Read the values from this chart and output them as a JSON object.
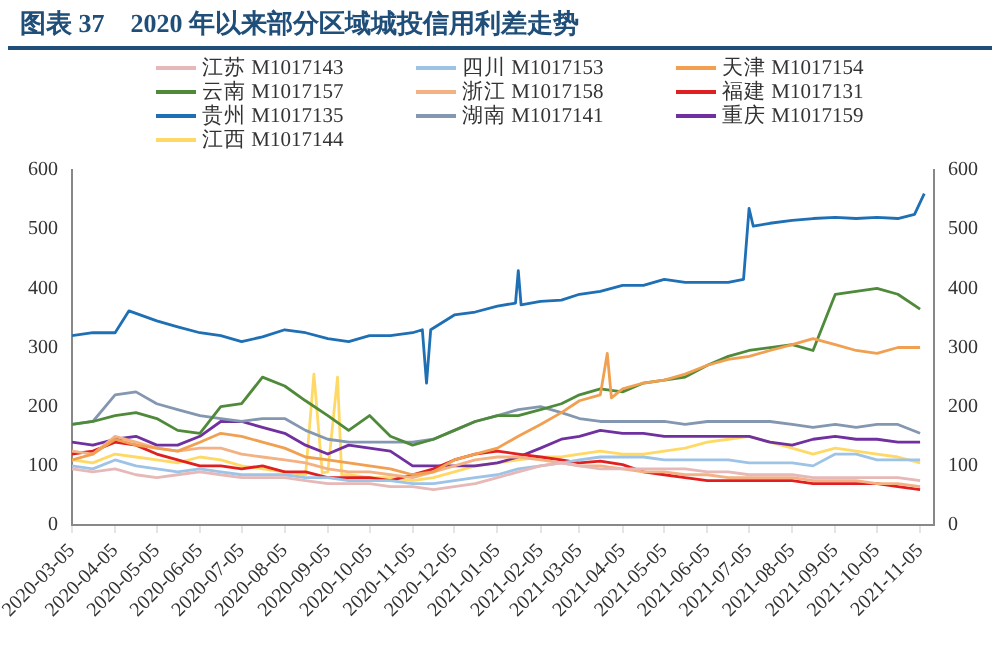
{
  "chart_data": {
    "type": "line",
    "title": "图表 37　2020 年以来部分区域城投信用利差走势",
    "x": [
      "2020-03-05",
      "2020-03-20",
      "2020-04-05",
      "2020-04-20",
      "2020-05-05",
      "2020-05-20",
      "2020-06-05",
      "2020-06-20",
      "2020-07-05",
      "2020-07-20",
      "2020-08-05",
      "2020-08-20",
      "2020-09-05",
      "2020-09-20",
      "2020-10-05",
      "2020-10-20",
      "2020-11-05",
      "2020-11-20",
      "2020-12-05",
      "2020-12-20",
      "2021-01-05",
      "2021-01-20",
      "2021-02-05",
      "2021-02-20",
      "2021-03-05",
      "2021-03-20",
      "2021-04-05",
      "2021-04-20",
      "2021-05-05",
      "2021-05-20",
      "2021-06-05",
      "2021-06-20",
      "2021-07-05",
      "2021-07-20",
      "2021-08-05",
      "2021-08-20",
      "2021-09-05",
      "2021-09-20",
      "2021-10-05",
      "2021-10-20",
      "2021-11-05"
    ],
    "series": [
      {
        "name": "江苏 M1017143",
        "color": "#e6b8b7",
        "values": [
          95,
          90,
          95,
          85,
          80,
          85,
          90,
          85,
          80,
          80,
          80,
          75,
          70,
          70,
          70,
          65,
          65,
          60,
          65,
          70,
          80,
          90,
          100,
          105,
          100,
          95,
          95,
          95,
          95,
          95,
          90,
          90,
          85,
          85,
          85,
          80,
          80,
          80,
          80,
          80,
          75
        ]
      },
      {
        "name": "四川 M1017153",
        "color": "#9dc3e6",
        "values": [
          100,
          95,
          110,
          100,
          95,
          90,
          95,
          90,
          85,
          85,
          85,
          80,
          80,
          75,
          75,
          75,
          70,
          70,
          75,
          80,
          85,
          95,
          100,
          105,
          110,
          115,
          115,
          115,
          110,
          110,
          110,
          110,
          105,
          105,
          105,
          100,
          120,
          120,
          110,
          110,
          110
        ]
      },
      {
        "name": "天津 M1017154",
        "color": "#f0a050",
        "x": [
          "2020-03-05",
          "2020-03-20",
          "2020-04-05",
          "2020-04-20",
          "2020-05-05",
          "2020-05-20",
          "2020-06-05",
          "2020-06-20",
          "2020-07-05",
          "2020-07-20",
          "2020-08-05",
          "2020-08-20",
          "2020-09-05",
          "2020-09-20",
          "2020-10-05",
          "2020-10-20",
          "2020-11-05",
          "2020-11-20",
          "2020-12-05",
          "2020-12-20",
          "2021-01-05",
          "2021-01-20",
          "2021-02-05",
          "2021-02-20",
          "2021-03-05",
          "2021-03-20",
          "2021-03-25",
          "2021-03-28",
          "2021-04-05",
          "2021-04-20",
          "2021-05-05",
          "2021-05-20",
          "2021-06-05",
          "2021-06-20",
          "2021-07-05",
          "2021-07-20",
          "2021-08-05",
          "2021-08-20",
          "2021-09-05",
          "2021-09-20",
          "2021-10-05",
          "2021-10-20",
          "2021-11-05"
        ],
        "values": [
          110,
          120,
          145,
          135,
          130,
          125,
          140,
          155,
          150,
          140,
          130,
          115,
          110,
          105,
          100,
          95,
          85,
          90,
          110,
          120,
          130,
          150,
          170,
          190,
          210,
          220,
          290,
          215,
          230,
          240,
          245,
          255,
          270,
          280,
          285,
          295,
          305,
          315,
          305,
          295,
          290,
          300,
          300
        ]
      },
      {
        "name": "云南 M1017157",
        "color": "#4f8a3a",
        "values": [
          170,
          175,
          185,
          190,
          180,
          160,
          155,
          200,
          205,
          250,
          235,
          210,
          185,
          160,
          185,
          150,
          135,
          145,
          160,
          175,
          185,
          185,
          195,
          205,
          220,
          230,
          225,
          240,
          245,
          250,
          270,
          285,
          295,
          300,
          305,
          295,
          390,
          395,
          400,
          390,
          365
        ]
      },
      {
        "name": "浙江 M1017158",
        "color": "#f4b183",
        "values": [
          125,
          120,
          150,
          140,
          130,
          125,
          130,
          130,
          120,
          115,
          110,
          105,
          95,
          90,
          90,
          85,
          80,
          90,
          100,
          110,
          115,
          115,
          110,
          105,
          100,
          100,
          95,
          90,
          90,
          85,
          85,
          80,
          80,
          80,
          80,
          75,
          75,
          75,
          70,
          70,
          65
        ]
      },
      {
        "name": "福建 M1017131",
        "color": "#e02020",
        "values": [
          120,
          125,
          140,
          135,
          120,
          110,
          100,
          100,
          95,
          100,
          90,
          90,
          80,
          80,
          80,
          75,
          85,
          95,
          110,
          120,
          125,
          120,
          115,
          110,
          105,
          108,
          102,
          90,
          85,
          80,
          75,
          75,
          75,
          75,
          75,
          70,
          70,
          70,
          70,
          65,
          60
        ]
      },
      {
        "name": "贵州 M1017135",
        "color": "#1f6fb4",
        "x": [
          "2020-03-05",
          "2020-03-20",
          "2020-04-05",
          "2020-04-15",
          "2020-05-05",
          "2020-05-20",
          "2020-06-05",
          "2020-06-20",
          "2020-07-05",
          "2020-07-20",
          "2020-08-05",
          "2020-08-20",
          "2020-09-05",
          "2020-09-20",
          "2020-10-05",
          "2020-10-20",
          "2020-11-05",
          "2020-11-12",
          "2020-11-15",
          "2020-11-18",
          "2020-12-05",
          "2020-12-20",
          "2021-01-05",
          "2021-01-18",
          "2021-01-20",
          "2021-01-22",
          "2021-02-05",
          "2021-02-20",
          "2021-03-05",
          "2021-03-20",
          "2021-04-05",
          "2021-04-20",
          "2021-05-05",
          "2021-05-20",
          "2021-06-05",
          "2021-06-20",
          "2021-07-01",
          "2021-07-05",
          "2021-07-08",
          "2021-07-20",
          "2021-08-05",
          "2021-08-20",
          "2021-09-05",
          "2021-09-20",
          "2021-10-05",
          "2021-10-20",
          "2021-11-01",
          "2021-11-08"
        ],
        "values": [
          320,
          325,
          325,
          362,
          345,
          335,
          325,
          320,
          310,
          318,
          330,
          325,
          315,
          310,
          320,
          320,
          325,
          330,
          240,
          330,
          355,
          360,
          370,
          375,
          430,
          372,
          378,
          380,
          390,
          395,
          405,
          405,
          415,
          410,
          410,
          410,
          415,
          535,
          505,
          510,
          515,
          518,
          520,
          518,
          520,
          518,
          525,
          560
        ]
      },
      {
        "name": "湖南 M1017141",
        "color": "#8497b0",
        "values": [
          170,
          175,
          220,
          225,
          205,
          195,
          185,
          180,
          175,
          180,
          180,
          160,
          145,
          140,
          140,
          140,
          140,
          145,
          160,
          175,
          185,
          195,
          200,
          190,
          180,
          175,
          175,
          175,
          175,
          170,
          175,
          175,
          175,
          175,
          170,
          165,
          170,
          165,
          170,
          170,
          155
        ]
      },
      {
        "name": "重庆 M1017159",
        "color": "#7030a0",
        "values": [
          140,
          135,
          145,
          150,
          135,
          135,
          150,
          175,
          175,
          165,
          155,
          135,
          120,
          135,
          130,
          125,
          100,
          100,
          100,
          100,
          105,
          115,
          130,
          145,
          150,
          160,
          155,
          155,
          150,
          150,
          150,
          150,
          150,
          140,
          135,
          145,
          150,
          145,
          145,
          140,
          140
        ]
      },
      {
        "name": "江西 M1017144",
        "color": "#ffd966",
        "x": [
          "2020-03-05",
          "2020-03-20",
          "2020-04-05",
          "2020-04-20",
          "2020-05-05",
          "2020-05-20",
          "2020-06-05",
          "2020-06-20",
          "2020-07-05",
          "2020-07-20",
          "2020-08-05",
          "2020-08-20",
          "2020-08-26",
          "2020-09-01",
          "2020-09-05",
          "2020-09-12",
          "2020-09-15",
          "2020-09-20",
          "2020-10-05",
          "2020-10-20",
          "2020-11-05",
          "2020-11-20",
          "2020-12-05",
          "2020-12-20",
          "2021-01-05",
          "2021-01-20",
          "2021-02-05",
          "2021-02-20",
          "2021-03-05",
          "2021-03-20",
          "2021-04-05",
          "2021-04-20",
          "2021-05-05",
          "2021-05-20",
          "2021-06-05",
          "2021-06-20",
          "2021-07-05",
          "2021-07-20",
          "2021-08-05",
          "2021-08-20",
          "2021-09-05",
          "2021-09-20",
          "2021-10-05",
          "2021-10-20",
          "2021-11-05"
        ],
        "values": [
          110,
          105,
          120,
          115,
          110,
          105,
          115,
          110,
          100,
          95,
          90,
          85,
          255,
          88,
          90,
          250,
          85,
          85,
          80,
          80,
          75,
          80,
          90,
          100,
          105,
          110,
          115,
          115,
          120,
          125,
          120,
          120,
          125,
          130,
          140,
          145,
          150,
          140,
          130,
          120,
          130,
          125,
          120,
          115,
          105
        ]
      }
    ],
    "xlim": [
      "2020-03-05",
      "2021-11-15"
    ],
    "xticks": [
      "2020-03-05",
      "2020-04-05",
      "2020-05-05",
      "2020-06-05",
      "2020-07-05",
      "2020-08-05",
      "2020-09-05",
      "2020-10-05",
      "2020-11-05",
      "2020-12-05",
      "2021-01-05",
      "2021-02-05",
      "2021-03-05",
      "2021-04-05",
      "2021-05-05",
      "2021-06-05",
      "2021-07-05",
      "2021-08-05",
      "2021-09-05",
      "2021-10-05",
      "2021-11-05"
    ],
    "ylim": [
      0,
      600
    ],
    "yticks": [
      0,
      100,
      200,
      300,
      400,
      500,
      600
    ],
    "y2lim": [
      0,
      600
    ],
    "y2ticks": [
      0,
      100,
      200,
      300,
      400,
      500,
      600
    ],
    "legend": "top",
    "grid": false
  }
}
